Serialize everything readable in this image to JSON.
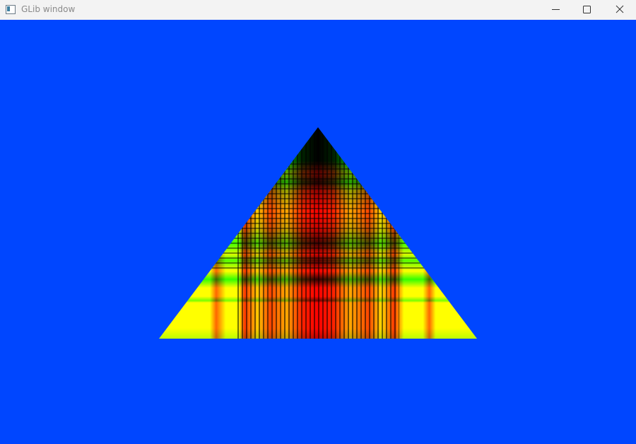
{
  "window": {
    "title": "GLib window"
  }
}
